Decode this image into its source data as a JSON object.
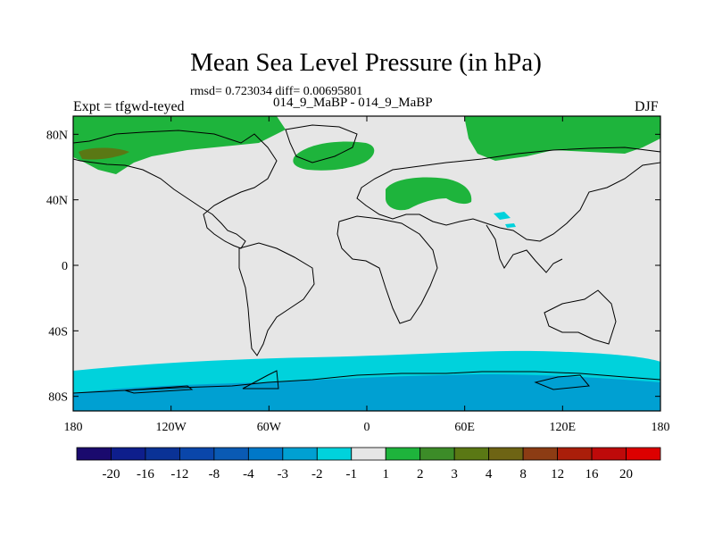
{
  "title": "Mean Sea Level Pressure (in hPa)",
  "stats": "rmsd= 0.723034 diff= 0.00695801",
  "subtitle": "014_9_MaBP - 014_9_MaBP",
  "left_label": "Expt = tfgwd-teyed",
  "right_label": "DJF",
  "map": {
    "lon_ticks": [
      "180",
      "120W",
      "60W",
      "0",
      "60E",
      "120E",
      "180"
    ],
    "lat_ticks": [
      "80N",
      "40N",
      "0",
      "40S",
      "80S"
    ],
    "background_color": "#e6e6e6"
  },
  "colorbar": {
    "levels": [
      "-20",
      "-16",
      "-12",
      "-8",
      "-4",
      "-3",
      "-2",
      "-1",
      "1",
      "2",
      "3",
      "4",
      "8",
      "12",
      "16",
      "20"
    ],
    "colors": [
      "#1a0a6e",
      "#0e1e8c",
      "#0a3296",
      "#0a46aa",
      "#0a5ab4",
      "#0078c8",
      "#00a0d2",
      "#00d2dc",
      "#e6e6e6",
      "#1eb43c",
      "#3c8c28",
      "#5a7814",
      "#6e6414",
      "#8c3c14",
      "#aa1e0a",
      "#be0a0a",
      "#dc0000"
    ]
  }
}
